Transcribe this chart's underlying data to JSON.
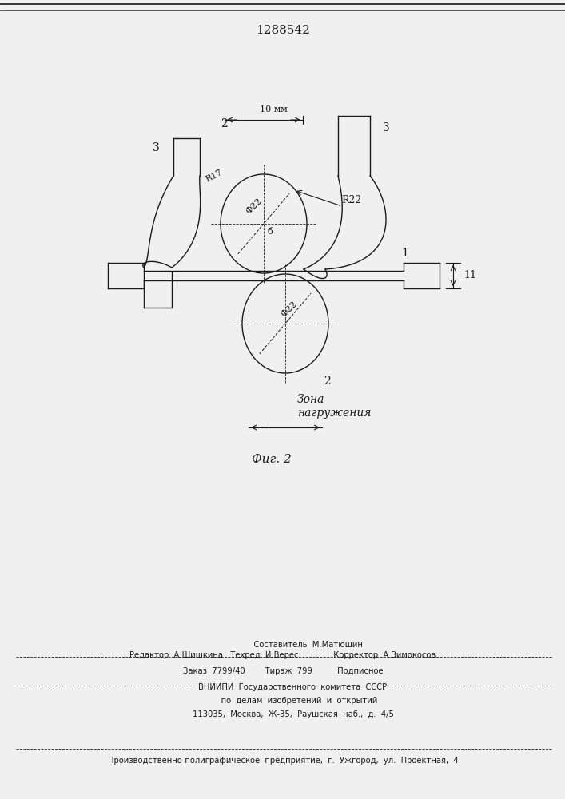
{
  "title": "1288542",
  "fig_caption": "Фиг. 2",
  "zone_label_line1": "Зона",
  "zone_label_line2": "нагружения",
  "label_10mm": "10 мм",
  "label_R22": "R22",
  "label_phi22_top": "Φ22",
  "label_phi22_bottom": "Φ22",
  "label_R17": "R17",
  "label_b": "б",
  "label_1": "1",
  "label_2_top": "2",
  "label_2_bot": "2",
  "label_3_left": "3",
  "label_3_right": "3",
  "label_11": "11",
  "footer_line1": "                    Составитель  М.Матюшин",
  "footer_line2": "Редактор  А.Шишкина   Техред  И.Верес              Корректор  А.Зимокосов",
  "footer_line3": "Заказ  7799/40        Тираж  799          Подписное",
  "footer_line4": "        ВНИИПИ  Государственного  комитета  СССР",
  "footer_line5": "             по  делам  изобретений  и  открытий",
  "footer_line6": "        113035,  Москва,  Ж-35,  Раушская  наб.,  д.  4/5",
  "footer_line7": "Производственно-полиграфическое  предприятие,  г.  Ужгород,  ул.  Проектная,  4",
  "bg_color": "#f0f0f0",
  "line_color": "#1a1a1a"
}
